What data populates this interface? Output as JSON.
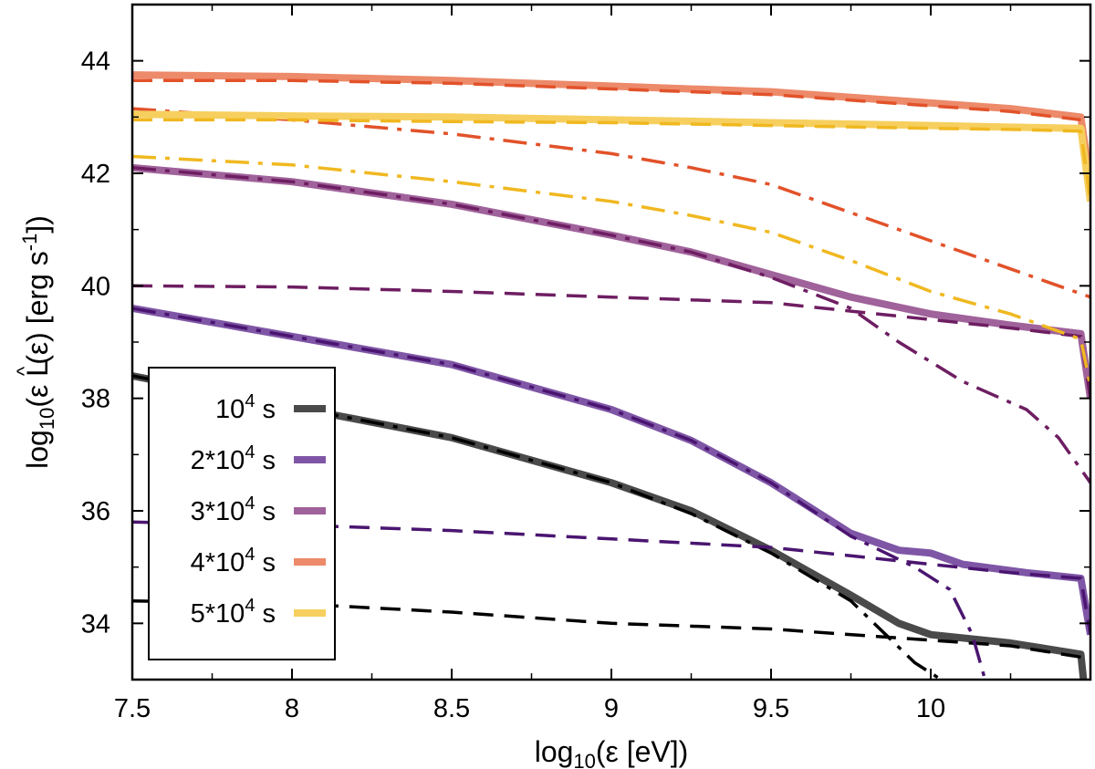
{
  "chart_data": {
    "type": "line",
    "title": "",
    "xlabel": "log10(ε [eV])",
    "ylabel": "log10(ε L^(ε) [erg s-1])",
    "xlim": [
      7.5,
      10.5
    ],
    "ylim": [
      33,
      45
    ],
    "xticks": [
      {
        "value": 7.5,
        "label": "7.5"
      },
      {
        "value": 8.0,
        "label": "8"
      },
      {
        "value": 8.5,
        "label": "8.5"
      },
      {
        "value": 9.0,
        "label": "9"
      },
      {
        "value": 9.5,
        "label": "9.5"
      },
      {
        "value": 10.0,
        "label": "10"
      }
    ],
    "yticks": [
      {
        "value": 34,
        "label": "34"
      },
      {
        "value": 36,
        "label": "36"
      },
      {
        "value": 38,
        "label": "38"
      },
      {
        "value": 40,
        "label": "40"
      },
      {
        "value": 42,
        "label": "42"
      },
      {
        "value": 44,
        "label": "44"
      }
    ],
    "grid": false,
    "legend_position": "bottom-left",
    "series": [
      {
        "name": "10^4 s",
        "legend_label": "10",
        "legend_exp": "4",
        "legend_suffix": " s",
        "color": "#4a4a4a",
        "total_color": "#4a4a4a",
        "components_color": "#000000",
        "total": [
          [
            7.5,
            38.4
          ],
          [
            8.0,
            37.85
          ],
          [
            8.5,
            37.3
          ],
          [
            9.0,
            36.5
          ],
          [
            9.25,
            36.0
          ],
          [
            9.5,
            35.3
          ],
          [
            9.75,
            34.5
          ],
          [
            9.9,
            34.0
          ],
          [
            10.0,
            33.8
          ],
          [
            10.25,
            33.65
          ],
          [
            10.47,
            33.45
          ],
          [
            10.48,
            32.9
          ]
        ],
        "dashed": [
          [
            7.5,
            34.4
          ],
          [
            8.0,
            34.35
          ],
          [
            8.5,
            34.2
          ],
          [
            9.0,
            34.0
          ],
          [
            9.5,
            33.9
          ],
          [
            10.0,
            33.7
          ],
          [
            10.25,
            33.6
          ],
          [
            10.47,
            33.4
          ]
        ],
        "dashdot": [
          [
            7.5,
            38.4
          ],
          [
            8.0,
            37.85
          ],
          [
            8.5,
            37.3
          ],
          [
            9.0,
            36.5
          ],
          [
            9.25,
            35.95
          ],
          [
            9.5,
            35.25
          ],
          [
            9.75,
            34.4
          ],
          [
            9.95,
            33.3
          ],
          [
            10.06,
            32.9
          ]
        ]
      },
      {
        "name": "2*10^4 s",
        "legend_label": "2*10",
        "legend_exp": "4",
        "legend_suffix": " s",
        "color": "#7f56a6",
        "total_color": "#7f56a6",
        "components_color": "#4a1570",
        "total": [
          [
            7.5,
            39.6
          ],
          [
            8.0,
            39.1
          ],
          [
            8.5,
            38.6
          ],
          [
            9.0,
            37.8
          ],
          [
            9.25,
            37.25
          ],
          [
            9.5,
            36.5
          ],
          [
            9.75,
            35.6
          ],
          [
            9.9,
            35.3
          ],
          [
            10.0,
            35.25
          ],
          [
            10.1,
            35.05
          ],
          [
            10.3,
            34.9
          ],
          [
            10.47,
            34.8
          ],
          [
            10.5,
            33.8
          ]
        ],
        "dashed": [
          [
            7.5,
            35.8
          ],
          [
            8.0,
            35.75
          ],
          [
            8.5,
            35.65
          ],
          [
            9.0,
            35.5
          ],
          [
            9.5,
            35.35
          ],
          [
            9.75,
            35.2
          ],
          [
            10.0,
            35.05
          ],
          [
            10.25,
            34.9
          ],
          [
            10.47,
            34.8
          ],
          [
            10.5,
            33.8
          ]
        ],
        "dashdot": [
          [
            7.5,
            39.6
          ],
          [
            8.0,
            39.1
          ],
          [
            8.5,
            38.6
          ],
          [
            9.0,
            37.8
          ],
          [
            9.25,
            37.25
          ],
          [
            9.5,
            36.5
          ],
          [
            9.75,
            35.55
          ],
          [
            9.95,
            35.0
          ],
          [
            10.06,
            34.6
          ],
          [
            10.13,
            33.8
          ],
          [
            10.17,
            33.0
          ]
        ]
      },
      {
        "name": "3*10^4 s",
        "legend_label": "3*10",
        "legend_exp": "4",
        "legend_suffix": " s",
        "color": "#a0629a",
        "total_color": "#a0629a",
        "components_color": "#6e1e62",
        "total": [
          [
            7.5,
            42.1
          ],
          [
            8.0,
            41.85
          ],
          [
            8.5,
            41.45
          ],
          [
            9.0,
            40.9
          ],
          [
            9.25,
            40.6
          ],
          [
            9.5,
            40.2
          ],
          [
            9.75,
            39.8
          ],
          [
            10.0,
            39.5
          ],
          [
            10.25,
            39.3
          ],
          [
            10.47,
            39.15
          ],
          [
            10.5,
            38.0
          ]
        ],
        "dashed": [
          [
            7.5,
            40.0
          ],
          [
            8.0,
            39.98
          ],
          [
            8.5,
            39.9
          ],
          [
            9.0,
            39.8
          ],
          [
            9.5,
            39.7
          ],
          [
            9.75,
            39.55
          ],
          [
            10.0,
            39.4
          ],
          [
            10.25,
            39.25
          ],
          [
            10.47,
            39.1
          ],
          [
            10.5,
            38.0
          ]
        ],
        "dashdot": [
          [
            7.5,
            42.1
          ],
          [
            8.0,
            41.85
          ],
          [
            8.5,
            41.45
          ],
          [
            9.0,
            40.9
          ],
          [
            9.25,
            40.6
          ],
          [
            9.5,
            40.15
          ],
          [
            9.75,
            39.6
          ],
          [
            9.9,
            39.0
          ],
          [
            10.1,
            38.3
          ],
          [
            10.3,
            37.8
          ],
          [
            10.4,
            37.3
          ],
          [
            10.5,
            36.5
          ]
        ]
      },
      {
        "name": "4*10^4 s",
        "legend_label": "4*10",
        "legend_exp": "4",
        "legend_suffix": " s",
        "color": "#ec8a6a",
        "total_color": "#ec8a6a",
        "components_color": "#e2522a",
        "total": [
          [
            7.5,
            43.75
          ],
          [
            8.0,
            43.72
          ],
          [
            8.5,
            43.65
          ],
          [
            9.0,
            43.55
          ],
          [
            9.5,
            43.45
          ],
          [
            10.0,
            43.25
          ],
          [
            10.25,
            43.15
          ],
          [
            10.47,
            43.0
          ],
          [
            10.5,
            41.8
          ]
        ],
        "dashed": [
          [
            7.5,
            43.65
          ],
          [
            8.0,
            43.65
          ],
          [
            8.5,
            43.6
          ],
          [
            9.0,
            43.5
          ],
          [
            9.5,
            43.4
          ],
          [
            10.0,
            43.2
          ],
          [
            10.25,
            43.1
          ],
          [
            10.47,
            42.95
          ]
        ],
        "dashdot": [
          [
            7.5,
            43.15
          ],
          [
            8.0,
            42.95
          ],
          [
            8.5,
            42.7
          ],
          [
            9.0,
            42.35
          ],
          [
            9.25,
            42.1
          ],
          [
            9.5,
            41.8
          ],
          [
            9.75,
            41.3
          ],
          [
            10.0,
            40.8
          ],
          [
            10.25,
            40.3
          ],
          [
            10.5,
            39.8
          ]
        ]
      },
      {
        "name": "5*10^4 s",
        "legend_label": "5*10",
        "legend_exp": "4",
        "legend_suffix": " s",
        "color": "#f6cf5e",
        "total_color": "#f6cf5e",
        "components_color": "#f0b820",
        "total": [
          [
            7.5,
            43.05
          ],
          [
            8.0,
            43.02
          ],
          [
            8.5,
            43.0
          ],
          [
            9.0,
            42.95
          ],
          [
            9.5,
            42.9
          ],
          [
            10.0,
            42.85
          ],
          [
            10.25,
            42.82
          ],
          [
            10.47,
            42.8
          ],
          [
            10.5,
            41.5
          ]
        ],
        "dashed": [
          [
            7.5,
            42.95
          ],
          [
            8.0,
            42.95
          ],
          [
            8.5,
            42.92
          ],
          [
            9.0,
            42.9
          ],
          [
            9.5,
            42.85
          ],
          [
            10.0,
            42.8
          ],
          [
            10.25,
            42.78
          ],
          [
            10.47,
            42.75
          ],
          [
            10.5,
            41.5
          ]
        ],
        "dashdot": [
          [
            7.5,
            42.3
          ],
          [
            8.0,
            42.15
          ],
          [
            8.5,
            41.85
          ],
          [
            9.0,
            41.5
          ],
          [
            9.25,
            41.25
          ],
          [
            9.5,
            40.95
          ],
          [
            9.75,
            40.45
          ],
          [
            10.0,
            39.9
          ],
          [
            10.25,
            39.5
          ],
          [
            10.47,
            39.05
          ],
          [
            10.5,
            38.2
          ]
        ]
      }
    ]
  }
}
